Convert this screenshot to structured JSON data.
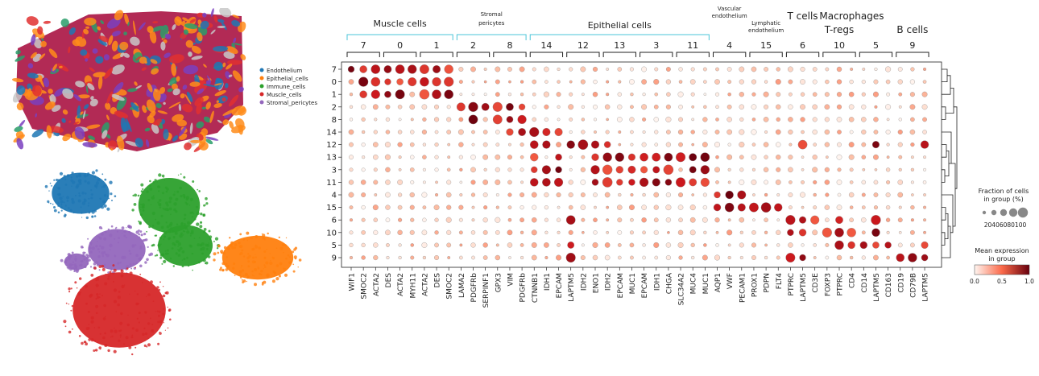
{
  "spatial_legend": {
    "items": [
      {
        "label": "Endothelium",
        "color": "#1f77b4"
      },
      {
        "label": "Epithelial_cells",
        "color": "#ff7f0e"
      },
      {
        "label": "Immune_cells",
        "color": "#2ca02c"
      },
      {
        "label": "Muscle_cells",
        "color": "#d62728"
      },
      {
        "label": "Stromal_pericytes",
        "color": "#9467bd"
      }
    ]
  },
  "size_legend": {
    "title_line1": "Fraction of cells",
    "title_line2": "in group (%)",
    "ticks": [
      "20",
      "40",
      "60",
      "80",
      "100"
    ],
    "tick_text": "20406080100"
  },
  "color_legend": {
    "title_line1": "Mean expression",
    "title_line2": "in group",
    "ticks": [
      "0.0",
      "0.5",
      "1.0"
    ],
    "color_low": "#fff5f0",
    "color_mid": "#fb6a4a",
    "color_high": "#67000d"
  },
  "chart_data": {
    "type": "dotplot",
    "rows": [
      "7",
      "0",
      "1",
      "2",
      "8",
      "14",
      "12",
      "13",
      "3",
      "11",
      "4",
      "15",
      "6",
      "10",
      "5",
      "9"
    ],
    "genes": [
      "WIF1",
      "SMOC2",
      "ACTA2",
      "DES",
      "ACTA2",
      "MYH11",
      "ACTA2",
      "DES",
      "SMOC2",
      "LAMA2",
      "PDGFRb",
      "SERPINF1",
      "GPX3",
      "VIM",
      "PDGFRb",
      "CTNNB1",
      "IDH1",
      "EPCAM",
      "LAPTM5",
      "IDH2",
      "ENO1",
      "IDH2",
      "EPCAM",
      "MUC1",
      "EPCAM",
      "IDH1",
      "CHGA",
      "SLC34A2",
      "MUC4",
      "MUC1",
      "AQP1",
      "VWF",
      "PECAM1",
      "PROX1",
      "PDPN",
      "FLT4",
      "PTPRC",
      "LAPTM5",
      "CD3E",
      "FOXP3",
      "PTPRC",
      "CD4",
      "CD14",
      "LAPTM5",
      "CD163",
      "CD19",
      "CD79B",
      "LAPTM5"
    ],
    "groups": [
      {
        "id": "7",
        "genes": 3
      },
      {
        "id": "0",
        "genes": 3
      },
      {
        "id": "1",
        "genes": 3
      },
      {
        "id": "2",
        "genes": 3
      },
      {
        "id": "8",
        "genes": 3
      },
      {
        "id": "14",
        "genes": 3
      },
      {
        "id": "12",
        "genes": 3
      },
      {
        "id": "13",
        "genes": 3
      },
      {
        "id": "3",
        "genes": 3
      },
      {
        "id": "11",
        "genes": 3
      },
      {
        "id": "4",
        "genes": 3
      },
      {
        "id": "15",
        "genes": 3
      },
      {
        "id": "6",
        "genes": 3
      },
      {
        "id": "10",
        "genes": 3
      },
      {
        "id": "5",
        "genes": 3
      },
      {
        "id": "9",
        "genes": 3
      }
    ],
    "celltype_brackets": [
      {
        "label": "Muscle cells",
        "lines": [
          "Muscle cells"
        ],
        "from_gene": 0,
        "to_gene": 8
      },
      {
        "label": "Stromal pericytes",
        "lines": [
          "Stromal",
          "pericytes"
        ],
        "from_gene": 9,
        "to_gene": 14
      },
      {
        "label": "Epithelial cells",
        "lines": [
          "Epithelial cells"
        ],
        "from_gene": 15,
        "to_gene": 29
      },
      {
        "label": "Vascular endothelium",
        "lines": [
          "Vascular",
          "endothelium"
        ],
        "from_gene": 30,
        "to_gene": 32
      },
      {
        "label": "Lymphatic endothelium",
        "lines": [
          "Lymphatic",
          "endothelium"
        ],
        "from_gene": 33,
        "to_gene": 35
      },
      {
        "label": "T cells",
        "lines": [
          "T cells"
        ],
        "from_gene": 36,
        "to_gene": 38
      },
      {
        "label": "T-regs",
        "lines": [
          "T-regs"
        ],
        "from_gene": 39,
        "to_gene": 41
      },
      {
        "label": "Macrophages",
        "lines": [
          "Macrophages"
        ],
        "from_gene": 42,
        "to_gene": 44
      },
      {
        "label": "B cells",
        "lines": [
          "B cells"
        ],
        "from_gene": 45,
        "to_gene": 47
      }
    ],
    "row_high": {
      "7": [
        0,
        1,
        2,
        3,
        4,
        5,
        6,
        7,
        8
      ],
      "0": [
        1,
        2,
        3,
        4,
        5,
        6,
        7,
        8
      ],
      "1": [
        1,
        2,
        3,
        4,
        6,
        7,
        8
      ],
      "2": [
        9,
        10,
        11,
        12,
        13,
        14
      ],
      "8": [
        10,
        12,
        13,
        14
      ],
      "14": [
        13,
        14,
        15,
        16,
        17
      ],
      "12": [
        15,
        16,
        18,
        19,
        20,
        21,
        37,
        43,
        47
      ],
      "13": [
        15,
        17,
        20,
        21,
        22,
        23,
        24,
        25,
        26,
        27,
        28,
        29
      ],
      "3": [
        15,
        16,
        17,
        20,
        21,
        22,
        23,
        24,
        25,
        26,
        28,
        29
      ],
      "11": [
        15,
        16,
        17,
        20,
        21,
        22,
        23,
        24,
        25,
        26,
        27,
        28,
        29
      ],
      "4": [
        30,
        31,
        32
      ],
      "15": [
        30,
        31,
        32,
        33,
        34,
        35
      ],
      "6": [
        18,
        36,
        37,
        38,
        40,
        43
      ],
      "10": [
        36,
        37,
        39,
        40,
        41,
        43
      ],
      "5": [
        18,
        40,
        41,
        42,
        43,
        44,
        47
      ],
      "9": [
        18,
        36,
        37,
        45,
        46,
        47
      ]
    },
    "ylabel": "",
    "xlabel": ""
  }
}
